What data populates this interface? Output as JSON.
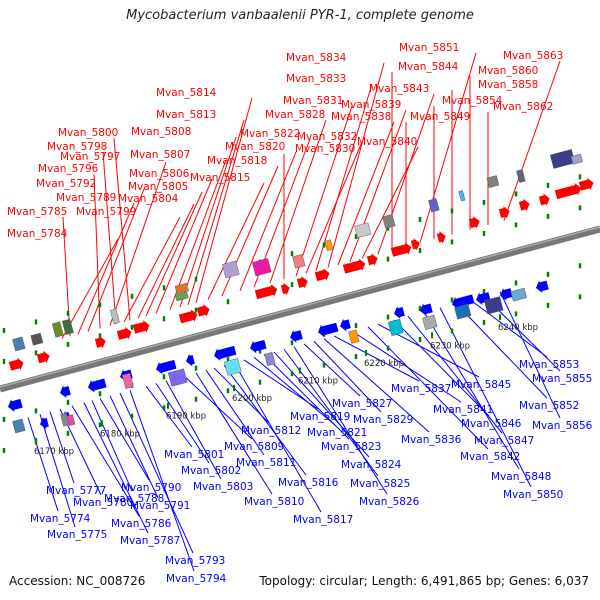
{
  "title": "Mycobacterium vanbaalenii PYR-1, complete genome",
  "accession_text": "Accession: NC_008726",
  "stats_text": "Topology: circular; Length: 6,491,865 bp; Genes: 6,037",
  "colors": {
    "forward_gene": "#ff0000",
    "reverse_gene": "#0000ff",
    "backbone": "#777777",
    "tick": "#008000"
  },
  "kbp_ticks": [
    "6170 kbp",
    "6180 kbp",
    "6190 kbp",
    "6200 kbp",
    "6210 kbp",
    "6220 kbp",
    "6230 kbp",
    "6240 kbp"
  ],
  "forward_genes": [
    "Mvan_5784",
    "Mvan_5785",
    "Mvan_5789",
    "Mvan_5792",
    "Mvan_5796",
    "Mvan_5797",
    "Mvan_5798",
    "Mvan_5799",
    "Mvan_5800",
    "Mvan_5804",
    "Mvan_5805",
    "Mvan_5806",
    "Mvan_5807",
    "Mvan_5808",
    "Mvan_5813",
    "Mvan_5814",
    "Mvan_5815",
    "Mvan_5818",
    "Mvan_5820",
    "Mvan_5822",
    "Mvan_5828",
    "Mvan_5830",
    "Mvan_5831",
    "Mvan_5832",
    "Mvan_5833",
    "Mvan_5834",
    "Mvan_5838",
    "Mvan_5839",
    "Mvan_5840",
    "Mvan_5843",
    "Mvan_5844",
    "Mvan_5849",
    "Mvan_5851",
    "Mvan_5854",
    "Mvan_5858",
    "Mvan_5860",
    "Mvan_5862",
    "Mvan_5863"
  ],
  "reverse_genes": [
    "Mvan_5774",
    "Mvan_5775",
    "Mvan_5777",
    "Mvan_5780",
    "Mvan_5786",
    "Mvan_5787",
    "Mvan_5788",
    "Mvan_5790",
    "Mvan_5791",
    "Mvan_5793",
    "Mvan_5794",
    "Mvan_5801",
    "Mvan_5802",
    "Mvan_5803",
    "Mvan_5809",
    "Mvan_5810",
    "Mvan_5811",
    "Mvan_5812",
    "Mvan_5816",
    "Mvan_5817",
    "Mvan_5819",
    "Mvan_5821",
    "Mvan_5823",
    "Mvan_5824",
    "Mvan_5825",
    "Mvan_5826",
    "Mvan_5827",
    "Mvan_5829",
    "Mvan_5836",
    "Mvan_5837",
    "Mvan_5841",
    "Mvan_5842",
    "Mvan_5845",
    "Mvan_5846",
    "Mvan_5847",
    "Mvan_5848",
    "Mvan_5850",
    "Mvan_5852",
    "Mvan_5853",
    "Mvan_5855",
    "Mvan_5856"
  ]
}
